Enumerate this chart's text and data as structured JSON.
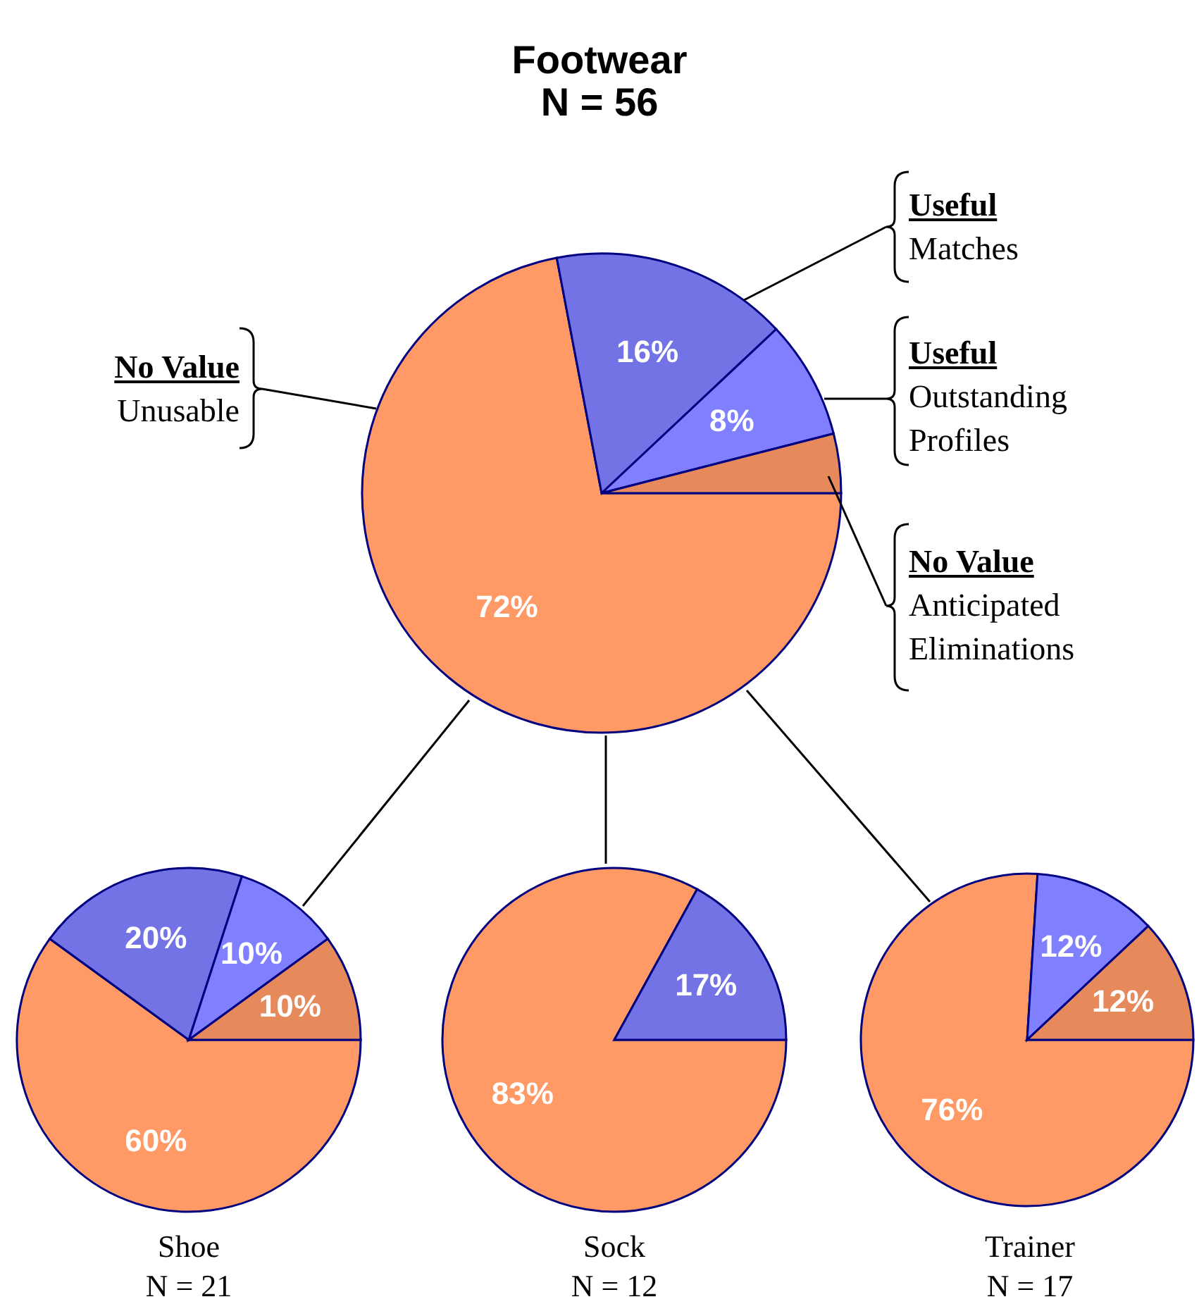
{
  "chart_data": [
    {
      "type": "pie",
      "title": "Footwear",
      "subtitle": "N = 56",
      "categories": [
        "Unusable",
        "Matches",
        "Outstanding Profiles",
        "Anticipated Eliminations"
      ],
      "values": [
        72,
        16,
        8,
        4
      ],
      "colors": [
        "#ff9966",
        "#7373e6",
        "#8080ff",
        "#e68a5c"
      ],
      "value_labels": [
        "72%",
        "16%",
        "8%",
        null
      ],
      "annotations": [
        "No Value",
        "Useful",
        "Useful",
        "No Value"
      ]
    },
    {
      "type": "pie",
      "title": "Shoe",
      "subtitle": "N = 21",
      "categories": [
        null,
        null,
        null,
        null
      ],
      "values": [
        60,
        20,
        10,
        10
      ],
      "colors": [
        "#ff9966",
        "#7373e6",
        "#8080ff",
        "#e68a5c"
      ],
      "value_labels": [
        "60%",
        "20%",
        "10%",
        "10%"
      ]
    },
    {
      "type": "pie",
      "title": "Sock",
      "subtitle": "N = 12",
      "categories": [
        null,
        null
      ],
      "values": [
        83,
        17
      ],
      "colors": [
        "#ff9966",
        "#7373e6"
      ],
      "value_labels": [
        "83%",
        "17%"
      ]
    },
    {
      "type": "pie",
      "title": "Trainer",
      "subtitle": "N = 17",
      "categories": [
        null,
        null,
        null
      ],
      "values": [
        76,
        12,
        12
      ],
      "colors": [
        "#ff9966",
        "#8080ff",
        "#e68a5c"
      ],
      "value_labels": [
        "76%",
        "12%",
        "12%"
      ]
    }
  ]
}
